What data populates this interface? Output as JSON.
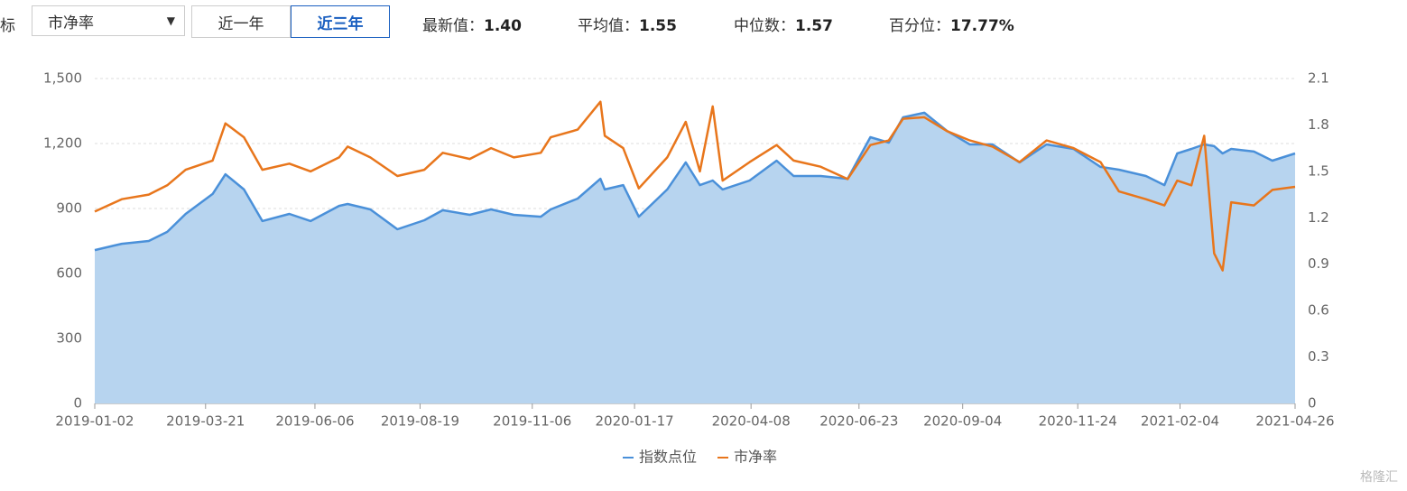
{
  "toolbar": {
    "label_cut": "标",
    "select": "市净率",
    "buttons": [
      "近一年",
      "近三年"
    ],
    "active_button": 1,
    "stats": [
      {
        "label": "最新值：",
        "value": "1.40"
      },
      {
        "label": "平均值：",
        "value": "1.55"
      },
      {
        "label": "中位数：",
        "value": "1.57"
      },
      {
        "label": "百分位：",
        "value": "17.77%"
      }
    ]
  },
  "chart_data": {
    "type": "line",
    "fill_first": true,
    "x": [
      "2019-01-02",
      "2019-01-21",
      "2019-02-09",
      "2019-02-22",
      "2019-03-07",
      "2019-03-26",
      "2019-04-04",
      "2019-04-17",
      "2019-04-30",
      "2019-05-19",
      "2019-06-03",
      "2019-06-23",
      "2019-06-29",
      "2019-07-15",
      "2019-08-03",
      "2019-08-22",
      "2019-09-04",
      "2019-09-23",
      "2019-10-08",
      "2019-10-24",
      "2019-11-12",
      "2019-11-19",
      "2019-12-08",
      "2019-12-24",
      "2019-12-27",
      "2020-01-09",
      "2020-01-20",
      "2020-02-09",
      "2020-02-22",
      "2020-03-03",
      "2020-03-12",
      "2020-03-19",
      "2020-04-07",
      "2020-04-26",
      "2020-05-08",
      "2020-05-27",
      "2020-06-15",
      "2020-07-01",
      "2020-07-14",
      "2020-07-24",
      "2020-08-08",
      "2020-08-24",
      "2020-09-09",
      "2020-09-25",
      "2020-10-14",
      "2020-11-02",
      "2020-11-21",
      "2020-12-10",
      "2020-12-23",
      "2021-01-11",
      "2021-01-24",
      "2021-02-02",
      "2021-02-12",
      "2021-02-21",
      "2021-02-28",
      "2021-03-06",
      "2021-03-12",
      "2021-03-28",
      "2021-04-10",
      "2021-04-26"
    ],
    "series": [
      {
        "name": "指数点位",
        "color": "#4a90d9",
        "fill": "#b7d4ef",
        "axis": "y",
        "values": [
          708,
          737,
          750,
          792,
          875,
          967,
          1058,
          988,
          842,
          875,
          842,
          912,
          921,
          896,
          804,
          846,
          892,
          871,
          896,
          871,
          862,
          896,
          946,
          1037,
          988,
          1008,
          862,
          988,
          1113,
          1008,
          1029,
          988,
          1029,
          1121,
          1050,
          1050,
          1037,
          1229,
          1204,
          1321,
          1342,
          1258,
          1196,
          1196,
          1113,
          1196,
          1175,
          1092,
          1079,
          1050,
          1008,
          1154,
          1175,
          1196,
          1188,
          1154,
          1175,
          1163,
          1121,
          1154
        ]
      },
      {
        "name": "市净率",
        "color": "#e8761c",
        "axis": "y2",
        "values": [
          1.24,
          1.32,
          1.35,
          1.41,
          1.51,
          1.57,
          1.81,
          1.72,
          1.51,
          1.55,
          1.5,
          1.59,
          1.66,
          1.59,
          1.47,
          1.51,
          1.62,
          1.58,
          1.65,
          1.59,
          1.62,
          1.72,
          1.77,
          1.95,
          1.73,
          1.65,
          1.39,
          1.59,
          1.82,
          1.5,
          1.92,
          1.44,
          1.56,
          1.67,
          1.57,
          1.53,
          1.45,
          1.67,
          1.7,
          1.84,
          1.85,
          1.76,
          1.7,
          1.66,
          1.56,
          1.7,
          1.65,
          1.56,
          1.37,
          1.32,
          1.28,
          1.44,
          1.41,
          1.73,
          0.97,
          0.86,
          1.3,
          1.28,
          1.38,
          1.4
        ]
      }
    ],
    "xlim": [
      "2019-01-02",
      "2021-04-26"
    ],
    "xticks": [
      "2019-01-02",
      "2019-03-21",
      "2019-06-06",
      "2019-08-19",
      "2019-11-06",
      "2020-01-17",
      "2020-04-08",
      "2020-06-23",
      "2020-09-04",
      "2020-11-24",
      "2021-02-04",
      "2021-04-26"
    ],
    "ylim": [
      0,
      1500
    ],
    "yticks": [
      0,
      300,
      600,
      900,
      {
        "value": 1200,
        "label": "1,200"
      },
      {
        "value": 1500,
        "label": "1,500"
      }
    ],
    "y2lim": [
      0,
      2.1
    ],
    "y2ticks": [
      0,
      0.3,
      0.6,
      0.9,
      1.2,
      1.5,
      1.8,
      2.1
    ],
    "grid": true
  },
  "watermark": "格隆汇"
}
